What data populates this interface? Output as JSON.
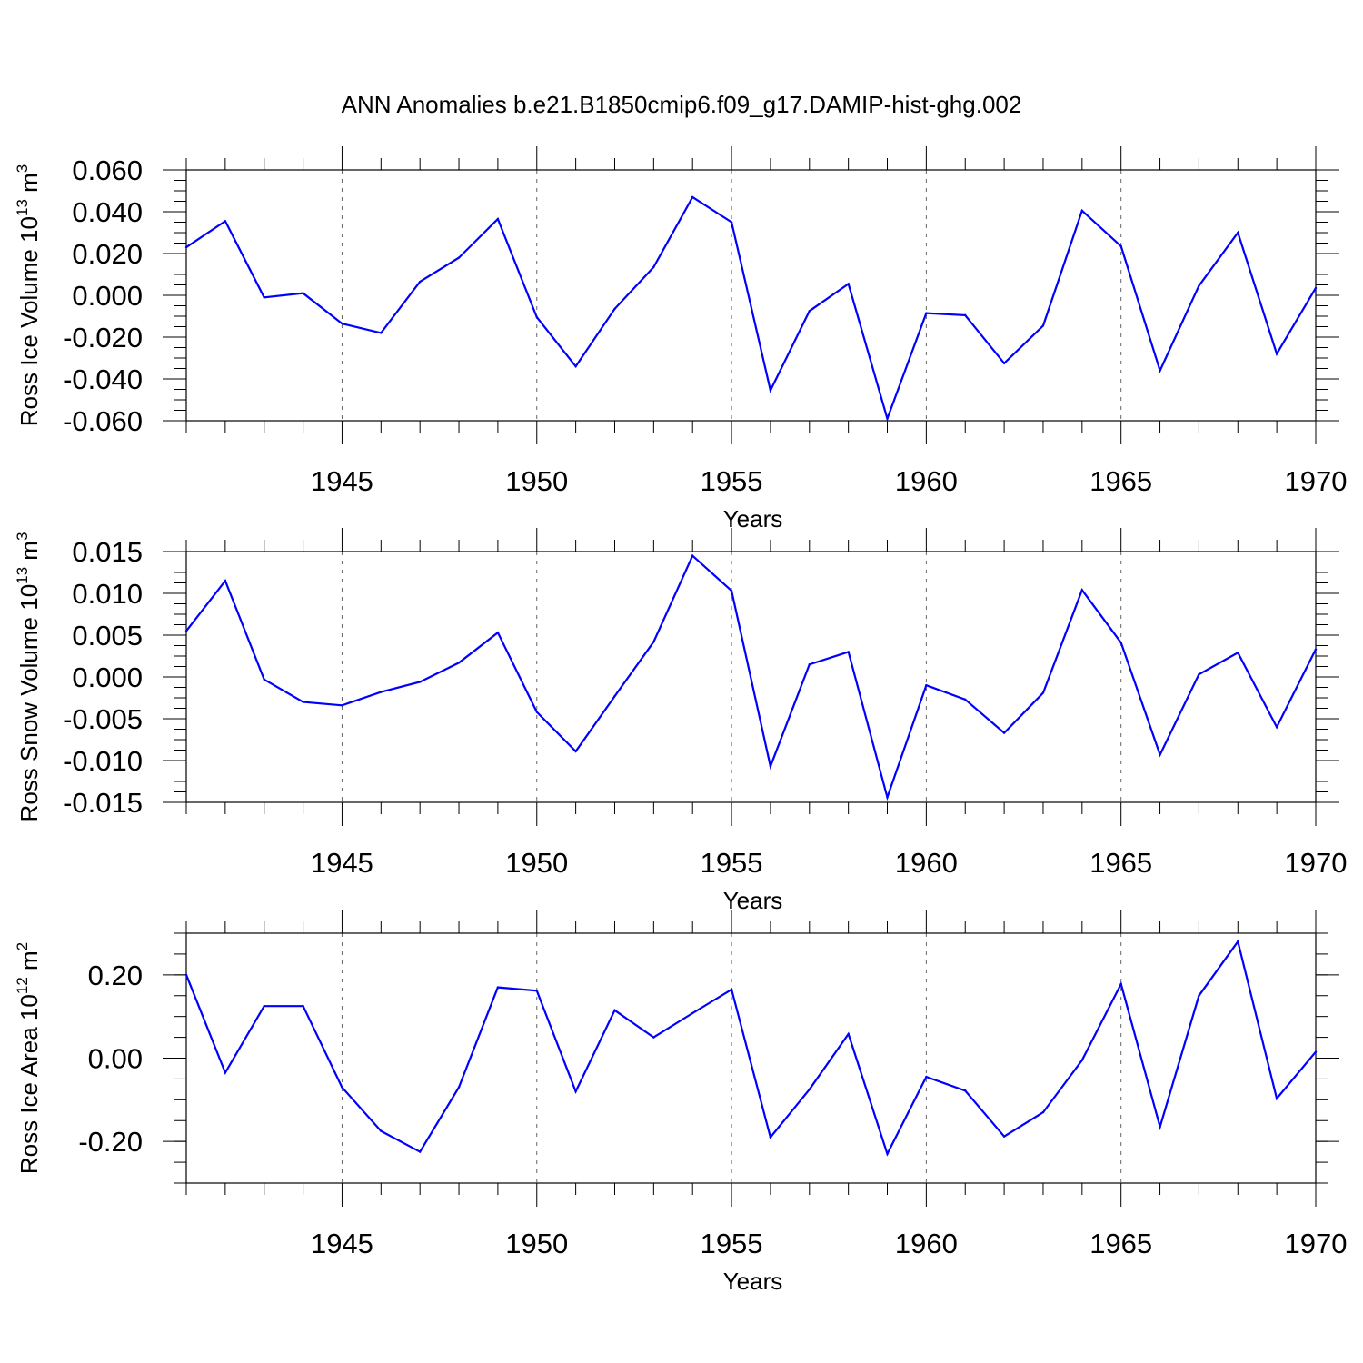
{
  "title": "ANN Anomalies b.e21.B1850cmip6.f09_g17.DAMIP-hist-ghg.002",
  "colors": {
    "series": "#0000ff",
    "grid": "#666666",
    "axis": "#000000"
  },
  "chart_data": [
    {
      "type": "line",
      "ylabel": {
        "main": "Ross Ice Volume 10",
        "sup": "13",
        "tail": " m",
        "sup2": "3"
      },
      "xlabel": "Years",
      "xlim": [
        1941,
        1970
      ],
      "ylim": [
        -0.06,
        0.06
      ],
      "xticks": [
        1945,
        1950,
        1955,
        1960,
        1965,
        1970
      ],
      "xtick_labels": [
        "1945",
        "1950",
        "1955",
        "1960",
        "1965",
        "1970"
      ],
      "yticks": [
        -0.06,
        -0.04,
        -0.02,
        0.0,
        0.02,
        0.04,
        0.06
      ],
      "ytick_labels": [
        "-0.060",
        "-0.040",
        "-0.020",
        "0.000",
        "0.020",
        "0.040",
        "0.060"
      ],
      "yminor_step": 0.005,
      "x": [
        1941,
        1942,
        1943,
        1944,
        1945,
        1946,
        1947,
        1948,
        1949,
        1950,
        1951,
        1952,
        1953,
        1954,
        1955,
        1956,
        1957,
        1958,
        1959,
        1960,
        1961,
        1962,
        1963,
        1964,
        1965,
        1966,
        1967,
        1968,
        1969,
        1970
      ],
      "values": [
        0.023,
        0.0355,
        -0.001,
        0.001,
        -0.0135,
        -0.018,
        0.0065,
        0.018,
        0.0365,
        -0.0105,
        -0.034,
        -0.0065,
        0.0135,
        0.047,
        0.035,
        -0.0455,
        -0.0075,
        0.0055,
        -0.059,
        -0.0085,
        -0.0095,
        -0.0325,
        -0.0145,
        0.0405,
        0.0235,
        -0.036,
        0.0045,
        0.03,
        -0.028,
        0.0035
      ]
    },
    {
      "type": "line",
      "ylabel": {
        "main": "Ross Snow Volume 10",
        "sup": "13",
        "tail": " m",
        "sup2": "3"
      },
      "xlabel": "Years",
      "xlim": [
        1941,
        1970
      ],
      "ylim": [
        -0.015,
        0.015
      ],
      "xticks": [
        1945,
        1950,
        1955,
        1960,
        1965,
        1970
      ],
      "xtick_labels": [
        "1945",
        "1950",
        "1955",
        "1960",
        "1965",
        "1970"
      ],
      "yticks": [
        -0.015,
        -0.01,
        -0.005,
        0.0,
        0.005,
        0.01,
        0.015
      ],
      "ytick_labels": [
        "-0.015",
        "-0.010",
        "-0.005",
        "0.000",
        "0.005",
        "0.010",
        "0.015"
      ],
      "yminor_step": 0.00125,
      "x": [
        1941,
        1942,
        1943,
        1944,
        1945,
        1946,
        1947,
        1948,
        1949,
        1950,
        1951,
        1952,
        1953,
        1954,
        1955,
        1956,
        1957,
        1958,
        1959,
        1960,
        1961,
        1962,
        1963,
        1964,
        1965,
        1966,
        1967,
        1968,
        1969,
        1970
      ],
      "values": [
        0.0055,
        0.0115,
        -0.0003,
        -0.003,
        -0.0034,
        -0.0018,
        -0.0006,
        0.0017,
        0.0053,
        -0.0042,
        -0.0089,
        -0.0023,
        0.0042,
        0.0145,
        0.0103,
        -0.0107,
        0.0015,
        0.003,
        -0.0144,
        -0.001,
        -0.0027,
        -0.0067,
        -0.0019,
        0.0104,
        0.0041,
        -0.0093,
        0.0003,
        0.0029,
        -0.006,
        0.0033
      ]
    },
    {
      "type": "line",
      "ylabel": {
        "main": "Ross Ice Area 10",
        "sup": "12",
        "tail": " m",
        "sup2": "2"
      },
      "xlabel": "Years",
      "xlim": [
        1941,
        1970
      ],
      "ylim": [
        -0.3,
        0.3
      ],
      "xticks": [
        1945,
        1950,
        1955,
        1960,
        1965,
        1970
      ],
      "xtick_labels": [
        "1945",
        "1950",
        "1955",
        "1960",
        "1965",
        "1970"
      ],
      "yticks": [
        -0.2,
        0.0,
        0.2
      ],
      "ytick_labels": [
        "-0.20",
        "0.00",
        "0.20"
      ],
      "yminor_step": 0.05,
      "x": [
        1941,
        1942,
        1943,
        1944,
        1945,
        1946,
        1947,
        1948,
        1949,
        1950,
        1951,
        1952,
        1953,
        1954,
        1955,
        1956,
        1957,
        1958,
        1959,
        1960,
        1961,
        1962,
        1963,
        1964,
        1965,
        1966,
        1967,
        1968,
        1969,
        1970
      ],
      "values": [
        0.2,
        -0.035,
        0.125,
        0.125,
        -0.07,
        -0.175,
        -0.225,
        -0.07,
        0.17,
        0.162,
        -0.08,
        0.115,
        0.05,
        0.108,
        0.165,
        -0.19,
        -0.075,
        0.058,
        -0.23,
        -0.045,
        -0.078,
        -0.188,
        -0.13,
        -0.005,
        0.178,
        -0.165,
        0.15,
        0.28,
        -0.097,
        0.015
      ]
    }
  ]
}
